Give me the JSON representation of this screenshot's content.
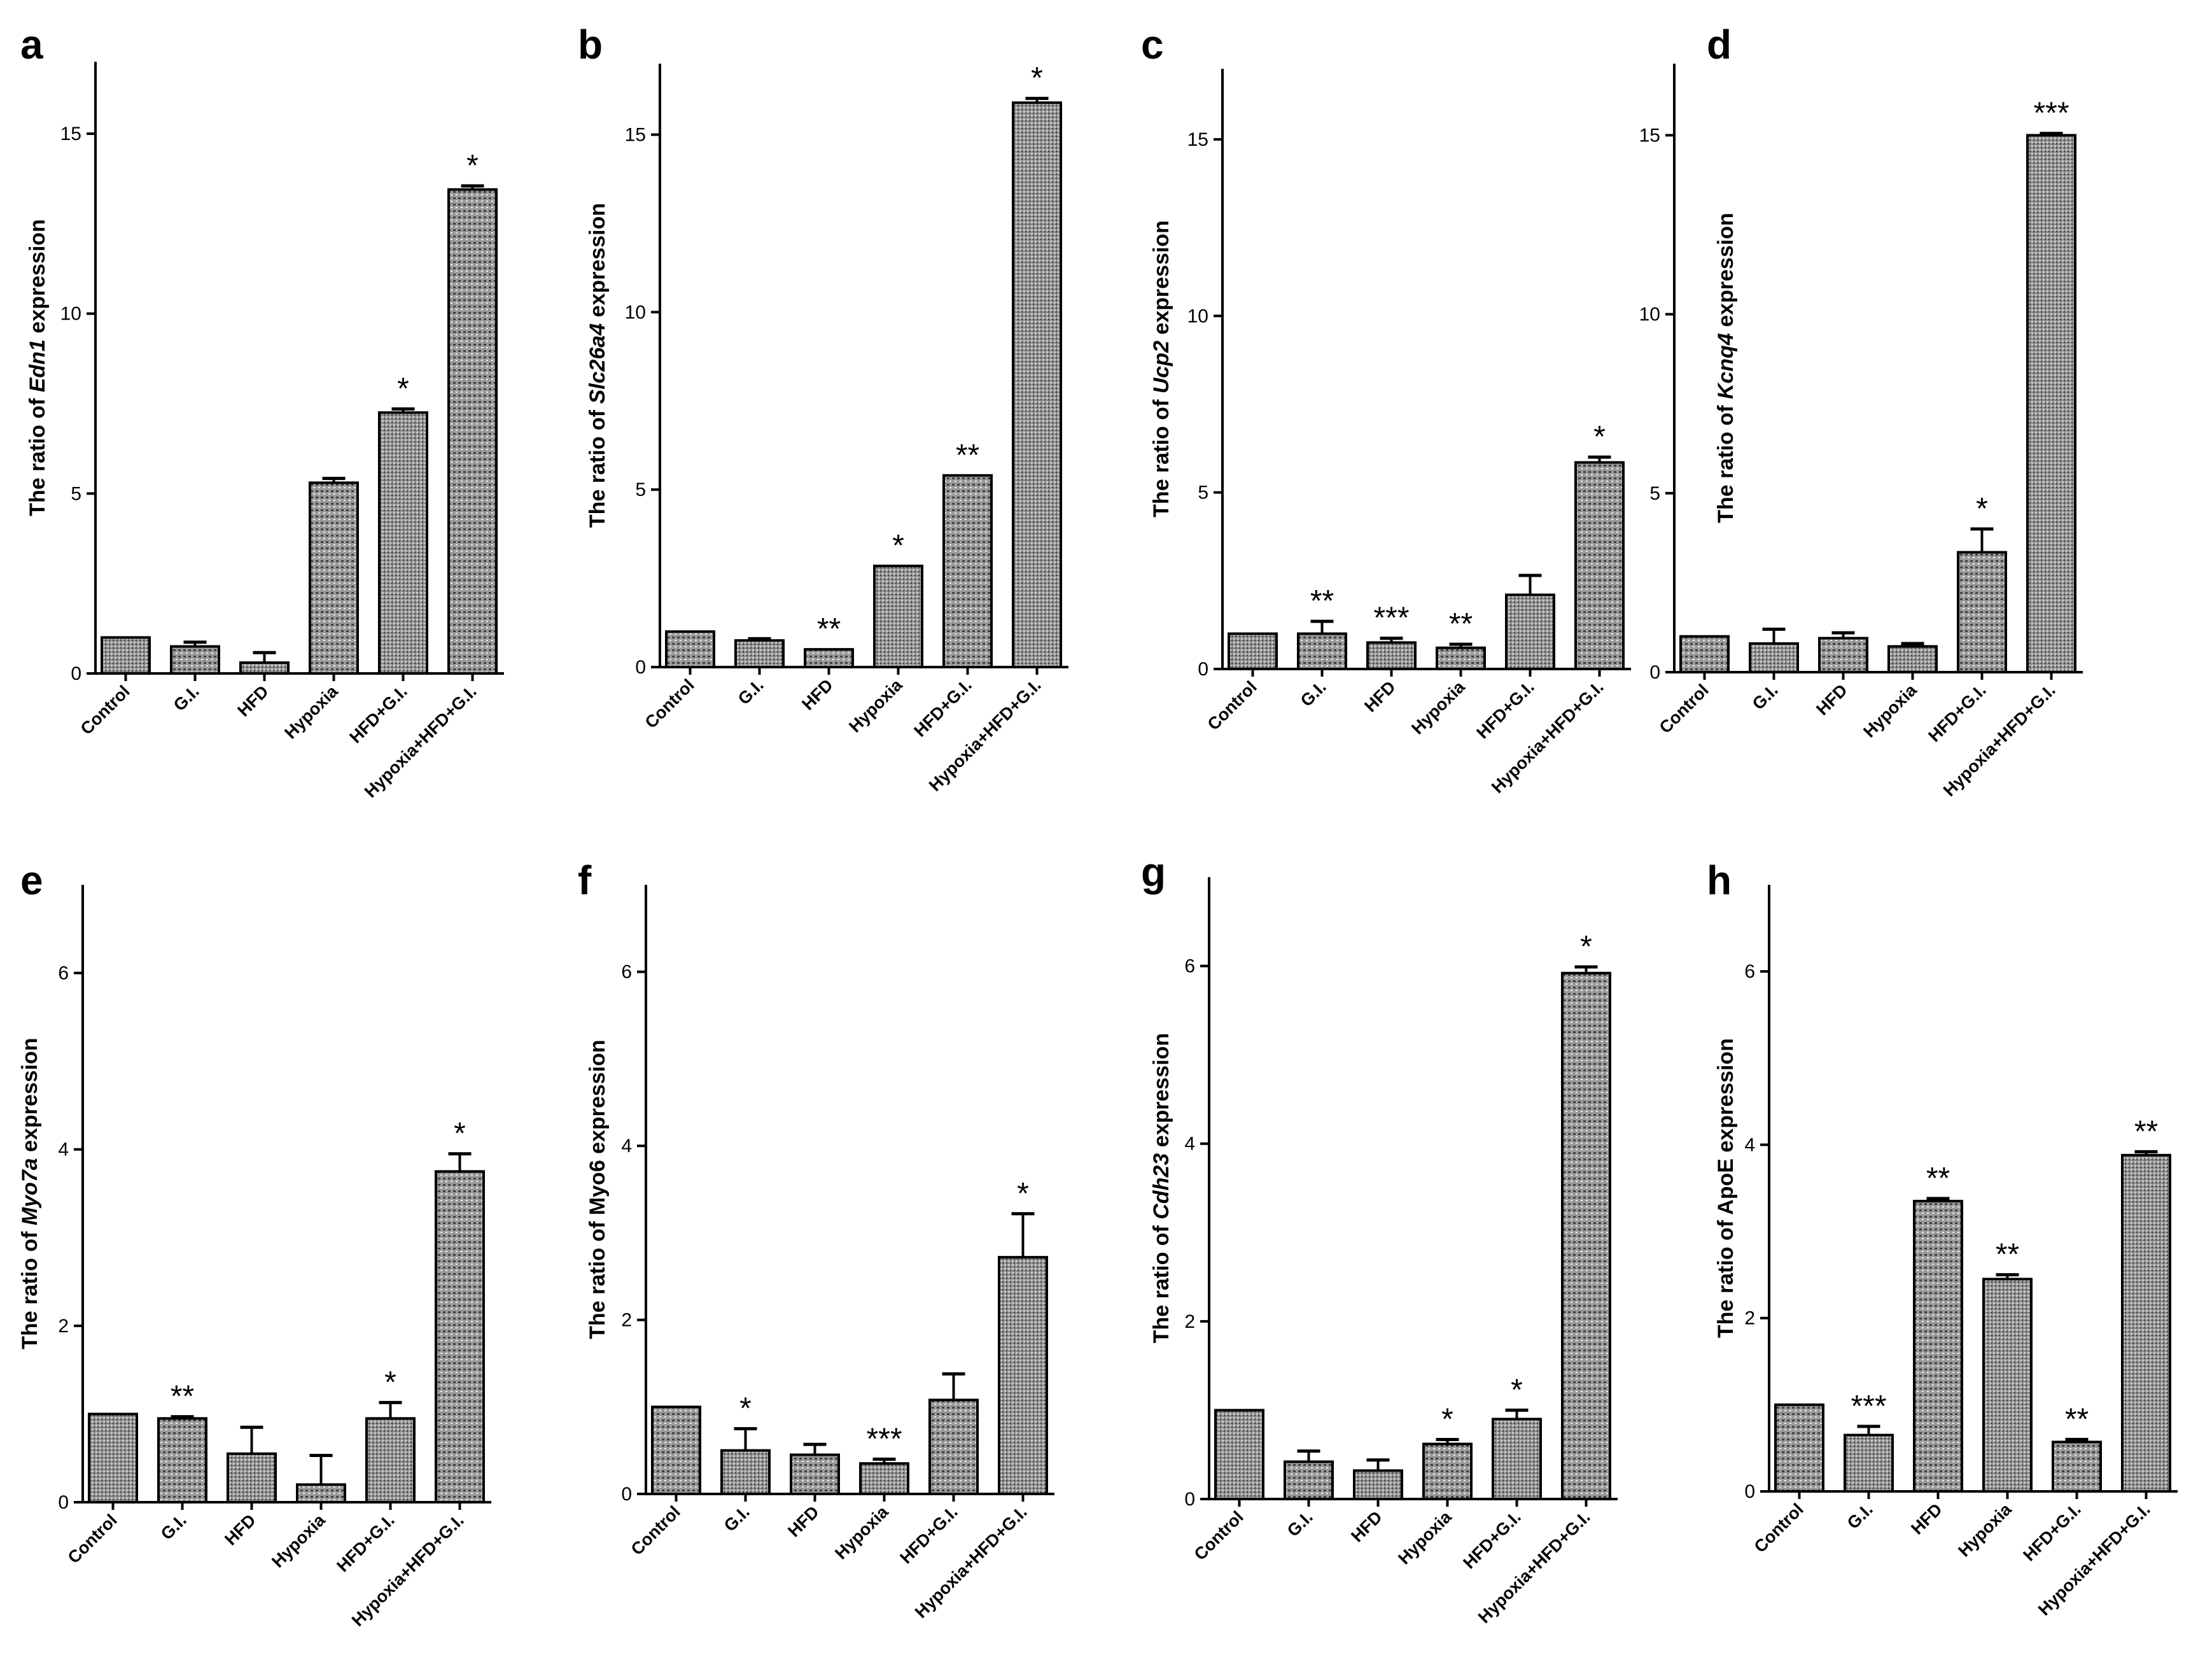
{
  "chart_data": [
    {
      "panel": "a",
      "type": "bar",
      "categories": [
        "Control",
        "G.I.",
        "HFD",
        "Hypoxia",
        "HFD+G.I.",
        "Hypoxia+HFD+G.I."
      ],
      "values": [
        1.0,
        0.75,
        0.3,
        5.3,
        7.25,
        13.45
      ],
      "errors": [
        0.0,
        0.12,
        0.28,
        0.12,
        0.1,
        0.1
      ],
      "significance": [
        "",
        "",
        "",
        "",
        "*",
        "*"
      ],
      "ylabel_prefix": "The ratio of ",
      "ylabel_gene": "Edn1",
      "ylabel_suffix": " expression",
      "ylim": [
        0,
        17
      ],
      "yticks": [
        0,
        5,
        10,
        15
      ]
    },
    {
      "panel": "b",
      "type": "bar",
      "categories": [
        "Control",
        "G.I.",
        "HFD",
        "Hypoxia",
        "HFD+G.I.",
        "Hypoxia+HFD+G.I."
      ],
      "values": [
        1.0,
        0.75,
        0.5,
        2.85,
        5.4,
        15.9
      ],
      "errors": [
        0.0,
        0.05,
        0.0,
        0.0,
        0.0,
        0.12
      ],
      "significance": [
        "",
        "",
        "**",
        "*",
        "**",
        "*"
      ],
      "ylabel_prefix": "The ratio of ",
      "ylabel_gene": "Slc26a4",
      "ylabel_suffix": " expression",
      "ylim": [
        0,
        17
      ],
      "yticks": [
        0,
        5,
        10,
        15
      ]
    },
    {
      "panel": "c",
      "type": "bar",
      "categories": [
        "Control",
        "G.I.",
        "HFD",
        "Hypoxia",
        "HFD+G.I.",
        "Hypoxia+HFD+G.I."
      ],
      "values": [
        1.0,
        1.0,
        0.75,
        0.6,
        2.1,
        5.85
      ],
      "errors": [
        0.0,
        0.35,
        0.12,
        0.1,
        0.55,
        0.15
      ],
      "significance": [
        "",
        "**",
        "***",
        "**",
        "",
        "*"
      ],
      "ylabel_prefix": "The ratio of ",
      "ylabel_gene": "Ucp2",
      "ylabel_suffix": " expression",
      "ylim": [
        0,
        17
      ],
      "yticks": [
        0,
        5,
        10,
        15
      ]
    },
    {
      "panel": "d",
      "type": "bar",
      "categories": [
        "Control",
        "G.I.",
        "HFD",
        "Hypoxia",
        "HFD+G.I.",
        "Hypoxia+HFD+G.I."
      ],
      "values": [
        1.0,
        0.8,
        0.95,
        0.72,
        3.35,
        15.0
      ],
      "errors": [
        0.0,
        0.4,
        0.15,
        0.08,
        0.65,
        0.05
      ],
      "significance": [
        "",
        "",
        "",
        "",
        "*",
        "***"
      ],
      "ylabel_prefix": "The ratio of ",
      "ylabel_gene": "Kcnq4",
      "ylabel_suffix": " expression",
      "ylim": [
        0,
        17
      ],
      "yticks": [
        0,
        5,
        10,
        15
      ]
    },
    {
      "panel": "e",
      "type": "bar",
      "categories": [
        "Control",
        "G.I.",
        "HFD",
        "Hypoxia",
        "HFD+G.I.",
        "Hypoxia+HFD+G.I."
      ],
      "values": [
        1.0,
        0.95,
        0.55,
        0.2,
        0.95,
        3.75
      ],
      "errors": [
        0.0,
        0.02,
        0.3,
        0.33,
        0.18,
        0.2
      ],
      "significance": [
        "",
        "**",
        "",
        "",
        "*",
        "*"
      ],
      "ylabel_prefix": "The ratio of ",
      "ylabel_gene": "Myo7a",
      "ylabel_suffix": " expression",
      "ylim": [
        0,
        7
      ],
      "yticks": [
        0,
        2,
        4,
        6
      ]
    },
    {
      "panel": "f",
      "type": "bar",
      "categories": [
        "Control",
        "G.I.",
        "HFD",
        "Hypoxia",
        "HFD+G.I.",
        "Hypoxia+HFD+G.I."
      ],
      "values": [
        1.0,
        0.5,
        0.45,
        0.35,
        1.08,
        2.72
      ],
      "errors": [
        0.0,
        0.25,
        0.12,
        0.05,
        0.3,
        0.5
      ],
      "significance": [
        "",
        "*",
        "",
        "***",
        "",
        "*"
      ],
      "ylabel_prefix": "The ratio of Myo6 expression",
      "ylabel_gene": "",
      "ylabel_suffix": "",
      "ylim": [
        0,
        7
      ],
      "yticks": [
        0,
        2,
        4,
        6
      ]
    },
    {
      "panel": "g",
      "type": "bar",
      "categories": [
        "Control",
        "G.I.",
        "HFD",
        "Hypoxia",
        "HFD+G.I.",
        "Hypoxia+HFD+G.I."
      ],
      "values": [
        1.0,
        0.42,
        0.32,
        0.62,
        0.9,
        5.92
      ],
      "errors": [
        0.0,
        0.12,
        0.12,
        0.05,
        0.1,
        0.07
      ],
      "significance": [
        "",
        "",
        "",
        "*",
        "*",
        "*"
      ],
      "ylabel_prefix": "The ratio of ",
      "ylabel_gene": "Cdh23",
      "ylabel_suffix": " expression",
      "ylim": [
        0,
        7
      ],
      "yticks": [
        0,
        2,
        4,
        6
      ]
    },
    {
      "panel": "h",
      "type": "bar",
      "categories": [
        "Control",
        "G.I.",
        "HFD",
        "Hypoxia",
        "HFD+G.I.",
        "Hypoxia+HFD+G.I."
      ],
      "values": [
        1.0,
        0.65,
        3.35,
        2.45,
        0.57,
        3.88
      ],
      "errors": [
        0.0,
        0.1,
        0.03,
        0.05,
        0.03,
        0.04
      ],
      "significance": [
        "",
        "***",
        "**",
        "**",
        "**",
        "**"
      ],
      "ylabel_prefix": "The ratio of ApoE expression",
      "ylabel_gene": "",
      "ylabel_suffix": "",
      "ylim": [
        0,
        7
      ],
      "yticks": [
        0,
        2,
        4,
        6
      ]
    }
  ],
  "colors": {
    "bar_fill": "#9a9a9a",
    "axis": "#000000"
  }
}
